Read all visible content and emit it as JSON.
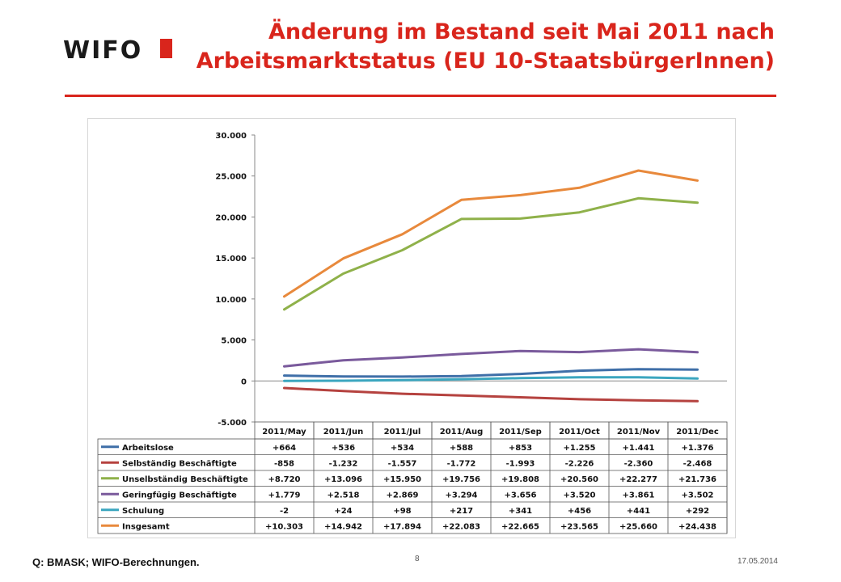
{
  "logo": {
    "text": "WIFO"
  },
  "header": {
    "title_line1": "Änderung im Bestand seit Mai 2011 nach",
    "title_line2": "Arbeitsmarktstatus (EU 10-StaatsbürgerInnen)"
  },
  "footer": {
    "source": "Q: BMASK; WIFO-Berechnungen.",
    "page_number": "8",
    "date": "17.05.2014"
  },
  "colors": {
    "brand_red": "#d9251c",
    "Arbeitslose": "#3f6fa8",
    "Selbständig Beschäftigte": "#b5423f",
    "Unselbständig Beschäftigte": "#8fb14a",
    "Geringfügig Beschäftigte": "#7a5a9c",
    "Schulung": "#3ba6bf",
    "Insgesamt": "#e8893c"
  },
  "chart_data": {
    "type": "line",
    "title": "",
    "xlabel": "",
    "ylabel": "",
    "ylim": [
      -5000,
      30000
    ],
    "y_ticks": [
      "-5.000",
      "0",
      "5.000",
      "10.000",
      "15.000",
      "20.000",
      "25.000",
      "30.000"
    ],
    "y_tick_values": [
      -5000,
      0,
      5000,
      10000,
      15000,
      20000,
      25000,
      30000
    ],
    "grid": false,
    "legend": "data-table-below",
    "categories": [
      "2011/May",
      "2011/Jun",
      "2011/Jul",
      "2011/Aug",
      "2011/Sep",
      "2011/Oct",
      "2011/Nov",
      "2011/Dec"
    ],
    "series": [
      {
        "name": "Arbeitslose",
        "values": [
          664,
          536,
          534,
          588,
          853,
          1255,
          1441,
          1376
        ],
        "labels": [
          "+664",
          "+536",
          "+534",
          "+588",
          "+853",
          "+1.255",
          "+1.441",
          "+1.376"
        ]
      },
      {
        "name": "Selbständig Beschäftigte",
        "values": [
          -858,
          -1232,
          -1557,
          -1772,
          -1993,
          -2226,
          -2360,
          -2468
        ],
        "labels": [
          "-858",
          "-1.232",
          "-1.557",
          "-1.772",
          "-1.993",
          "-2.226",
          "-2.360",
          "-2.468"
        ]
      },
      {
        "name": "Unselbständig Beschäftigte",
        "values": [
          8720,
          13096,
          15950,
          19756,
          19808,
          20560,
          22277,
          21736
        ],
        "labels": [
          "+8.720",
          "+13.096",
          "+15.950",
          "+19.756",
          "+19.808",
          "+20.560",
          "+22.277",
          "+21.736"
        ]
      },
      {
        "name": "Geringfügig Beschäftigte",
        "values": [
          1779,
          2518,
          2869,
          3294,
          3656,
          3520,
          3861,
          3502
        ],
        "labels": [
          "+1.779",
          "+2.518",
          "+2.869",
          "+3.294",
          "+3.656",
          "+3.520",
          "+3.861",
          "+3.502"
        ]
      },
      {
        "name": "Schulung",
        "values": [
          -2,
          24,
          98,
          217,
          341,
          456,
          441,
          292
        ],
        "labels": [
          "-2",
          "+24",
          "+98",
          "+217",
          "+341",
          "+456",
          "+441",
          "+292"
        ]
      },
      {
        "name": "Insgesamt",
        "values": [
          10303,
          14942,
          17894,
          22083,
          22665,
          23565,
          25660,
          24438
        ],
        "labels": [
          "+10.303",
          "+14.942",
          "+17.894",
          "+22.083",
          "+22.665",
          "+23.565",
          "+25.660",
          "+24.438"
        ]
      }
    ]
  }
}
